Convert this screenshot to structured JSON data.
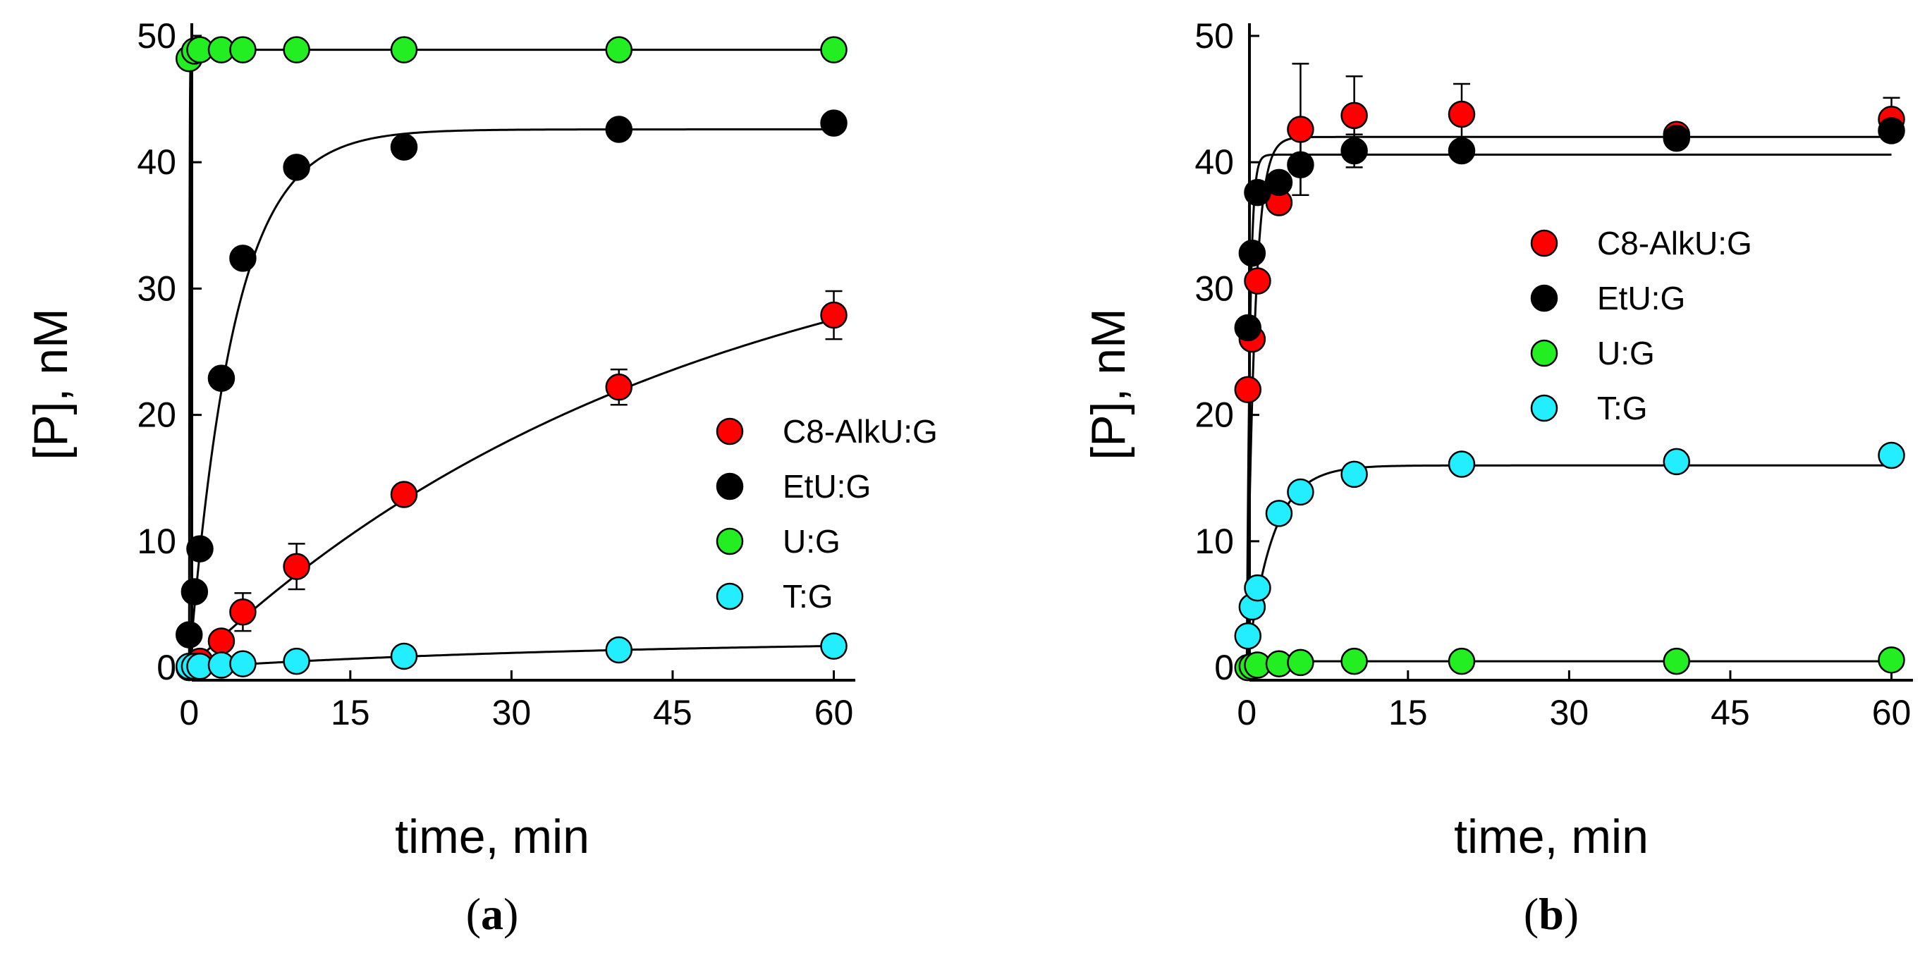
{
  "figure": {
    "background": "#ffffff"
  },
  "colors": {
    "C8-AlkU:G": "#ff0000",
    "EtU:G": "#000000",
    "U:G": "#22ee22",
    "T:G": "#22eeff"
  },
  "chart_data": [
    {
      "id": "a",
      "type": "scatter",
      "title": "",
      "caption": {
        "open": "(",
        "letter": "a",
        "close": ")"
      },
      "xlabel": "time, min",
      "ylabel": "[P], nM",
      "xlim": [
        -1,
        62
      ],
      "ylim": [
        -1,
        51
      ],
      "xticks": [
        0,
        15,
        30,
        45,
        60
      ],
      "yticks": [
        0,
        10,
        20,
        30,
        40,
        50
      ],
      "grid": false,
      "legend": "right-middle",
      "series": [
        {
          "name": "C8-AlkU:G",
          "x": [
            0,
            0.5,
            1,
            3,
            5,
            10,
            20,
            40,
            60
          ],
          "y": [
            0,
            0.2,
            0.5,
            2.1,
            4.4,
            8.0,
            13.7,
            22.2,
            27.9
          ],
          "err": [
            0,
            0,
            0,
            0,
            1.5,
            1.8,
            0,
            1.4,
            1.9
          ]
        },
        {
          "name": "EtU:G",
          "x": [
            0,
            0.5,
            1,
            3,
            5,
            10,
            20,
            40,
            60
          ],
          "y": [
            2.6,
            6.0,
            9.4,
            22.9,
            32.4,
            39.6,
            41.2,
            42.6,
            43.1
          ],
          "err": [
            0,
            0,
            0,
            0,
            0,
            0,
            0,
            0,
            0
          ]
        },
        {
          "name": "U:G",
          "x": [
            0,
            0.5,
            1,
            3,
            5,
            10,
            20,
            40,
            60
          ],
          "y": [
            48.2,
            48.8,
            48.9,
            48.9,
            48.9,
            48.9,
            48.9,
            48.9,
            48.9
          ],
          "err": [
            0,
            0,
            0,
            0,
            0,
            0,
            0,
            0,
            0
          ]
        },
        {
          "name": "T:G",
          "x": [
            0,
            0.5,
            1,
            3,
            5,
            10,
            20,
            40,
            60
          ],
          "y": [
            0.1,
            0.1,
            0.1,
            0.2,
            0.3,
            0.5,
            0.9,
            1.4,
            1.7
          ],
          "err": [
            0,
            0,
            0,
            0,
            0,
            0,
            0,
            0,
            0
          ]
        }
      ],
      "fits": [
        {
          "name": "C8-AlkU:G",
          "model": "exp",
          "A": 38,
          "k": 0.0215
        },
        {
          "name": "EtU:G",
          "model": "exp",
          "A": 42.6,
          "k": 0.24
        },
        {
          "name": "U:G",
          "model": "exp",
          "A": 48.9,
          "k": 30
        },
        {
          "name": "T:G",
          "model": "exp",
          "A": 2.2,
          "k": 0.025
        }
      ]
    },
    {
      "id": "b",
      "type": "scatter",
      "title": "",
      "caption": {
        "open": "(",
        "letter": "b",
        "close": ")"
      },
      "xlabel": "time, min",
      "ylabel": "[P], nM",
      "xlim": [
        -1,
        62
      ],
      "ylim": [
        -1,
        51
      ],
      "xticks": [
        0,
        15,
        30,
        45,
        60
      ],
      "yticks": [
        0,
        10,
        20,
        30,
        40,
        50
      ],
      "grid": false,
      "legend": "upper-right",
      "series": [
        {
          "name": "C8-AlkU:G",
          "x": [
            0.1,
            0.5,
            1,
            3,
            5,
            10,
            20,
            40,
            60
          ],
          "y": [
            22.0,
            26.0,
            30.6,
            36.8,
            42.6,
            43.7,
            43.8,
            42.2,
            43.4
          ],
          "err": [
            0,
            0,
            0,
            0,
            5.2,
            3.1,
            2.4,
            0,
            1.7
          ]
        },
        {
          "name": "EtU:G",
          "x": [
            0.1,
            0.5,
            1,
            3,
            5,
            10,
            20,
            40,
            60
          ],
          "y": [
            26.9,
            32.8,
            37.6,
            38.4,
            39.8,
            40.9,
            40.9,
            41.9,
            42.5
          ],
          "err": [
            0,
            0,
            0,
            0,
            2.4,
            1.3,
            0,
            0,
            0
          ]
        },
        {
          "name": "U:G",
          "x": [
            0.1,
            0.5,
            1,
            3,
            5,
            10,
            20,
            40,
            60
          ],
          "y": [
            0,
            0.1,
            0.2,
            0.3,
            0.4,
            0.5,
            0.5,
            0.5,
            0.6
          ],
          "err": [
            0,
            0,
            0,
            0,
            0,
            0,
            0,
            0,
            0
          ]
        },
        {
          "name": "T:G",
          "x": [
            0.1,
            0.5,
            1,
            3,
            5,
            10,
            20,
            40,
            60
          ],
          "y": [
            2.5,
            4.8,
            6.3,
            12.2,
            13.9,
            15.3,
            16.1,
            16.3,
            16.8
          ],
          "err": [
            0,
            0,
            0,
            0,
            0,
            0,
            0,
            0,
            0
          ]
        }
      ],
      "fits": [
        {
          "name": "C8-AlkU:G",
          "model": "exp",
          "A": 42.0,
          "k": 1.4
        },
        {
          "name": "EtU:G",
          "model": "exp",
          "A": 40.6,
          "k": 3.5
        },
        {
          "name": "U:G",
          "model": "exp",
          "A": 0.5,
          "k": 1.0
        },
        {
          "name": "T:G",
          "model": "exp",
          "A": 16.0,
          "k": 0.43
        }
      ]
    }
  ]
}
